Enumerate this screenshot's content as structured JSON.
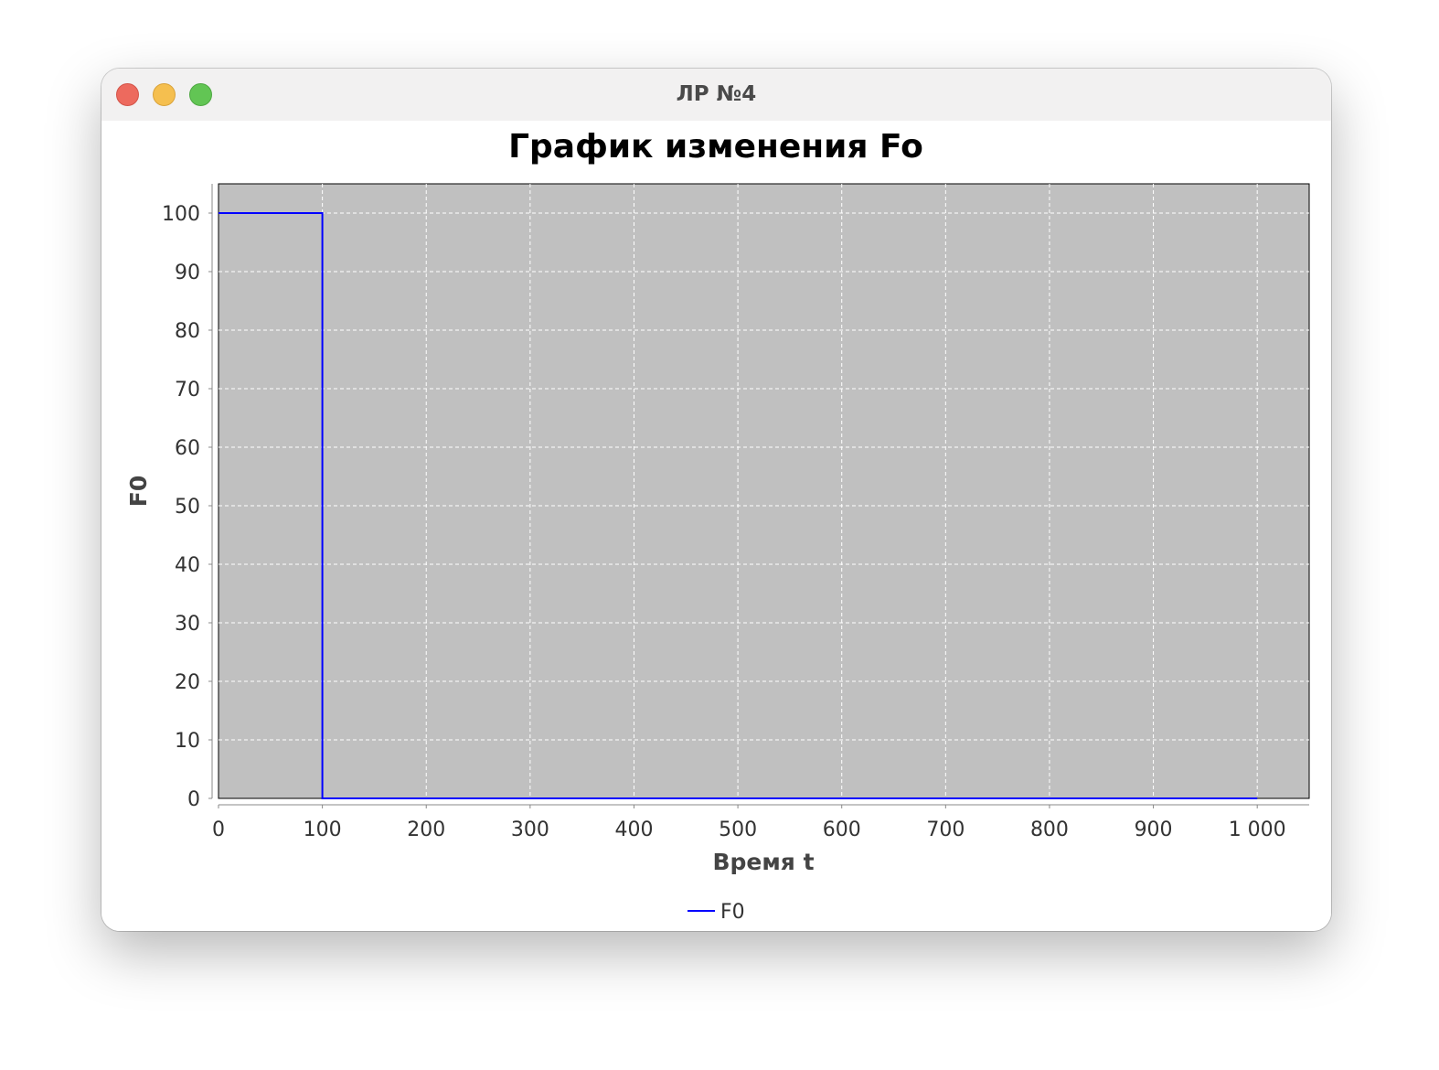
{
  "window": {
    "title": "ЛР №4"
  },
  "chart_data": {
    "type": "line",
    "title": "График изменения Fo",
    "xlabel": "Время t",
    "ylabel": "F0",
    "xlim": [
      0,
      1050
    ],
    "ylim": [
      0,
      105
    ],
    "x_ticks": [
      0,
      100,
      200,
      300,
      400,
      500,
      600,
      700,
      800,
      900,
      1000
    ],
    "x_tick_labels": [
      "0",
      "100",
      "200",
      "300",
      "400",
      "500",
      "600",
      "700",
      "800",
      "900",
      "1 000"
    ],
    "y_ticks": [
      0,
      10,
      20,
      30,
      40,
      50,
      60,
      70,
      80,
      90,
      100
    ],
    "y_tick_labels": [
      "0",
      "10",
      "20",
      "30",
      "40",
      "50",
      "60",
      "70",
      "80",
      "90",
      "100"
    ],
    "grid": true,
    "legend_position": "bottom-center",
    "colors": {
      "plot_background": "#c0c0c0",
      "grid": "#ffffff",
      "series": "#0000ff"
    },
    "series": [
      {
        "name": "F0",
        "x": [
          0,
          100,
          100,
          1000
        ],
        "y": [
          100,
          100,
          0,
          0
        ]
      }
    ]
  }
}
